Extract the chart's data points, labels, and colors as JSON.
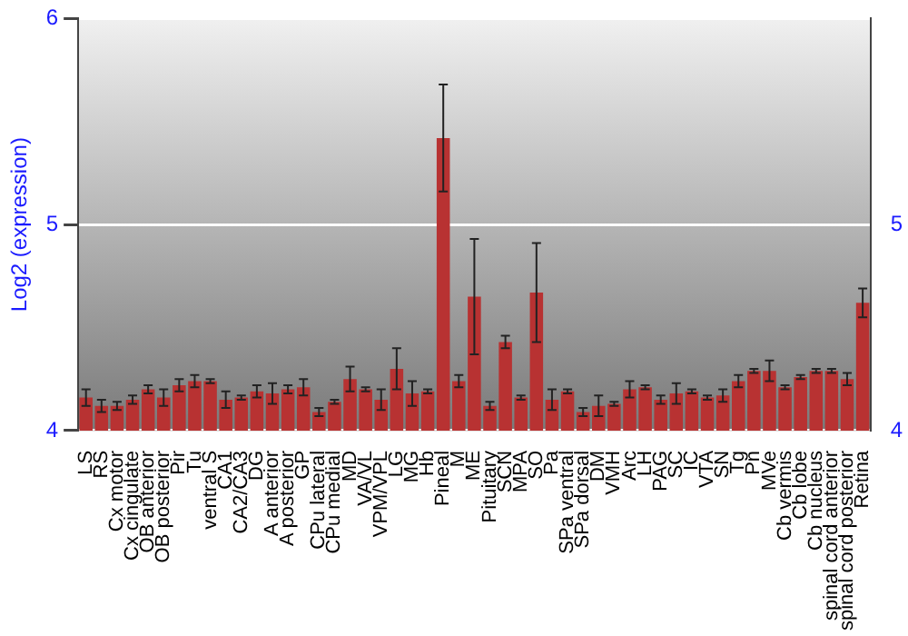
{
  "chart_data": {
    "type": "bar",
    "ylabel": "Log2 (expression)",
    "categories": [
      "LS",
      "RS",
      "Cx motor",
      "Cx cingulate",
      "OB anterior",
      "OB posterior",
      "Pir",
      "Tu",
      "ventral S",
      "CA1",
      "CA2/CA3",
      "DG",
      "A anterior",
      "A posterior",
      "GP",
      "CPu lateral",
      "CPu medial",
      "MD",
      "VA/VL",
      "VPM/VPL",
      "LG",
      "MG",
      "Hb",
      "Pineal",
      "M",
      "ME",
      "Pituitary",
      "SCN",
      "MPA",
      "SO",
      "Pa",
      "SPa ventral",
      "SPa dorsal",
      "DM",
      "VMH",
      "Arc",
      "LH",
      "PAG",
      "SC",
      "IC",
      "VTA",
      "SN",
      "Tg",
      "Pn",
      "MVe",
      "Cb vermis",
      "Cb lobe",
      "Cb nucleus",
      "spinal cord anterior",
      "spinal cord posterior",
      "Retina"
    ],
    "values": [
      4.16,
      4.12,
      4.12,
      4.15,
      4.2,
      4.16,
      4.22,
      4.24,
      4.24,
      4.15,
      4.16,
      4.19,
      4.18,
      4.2,
      4.21,
      4.09,
      4.14,
      4.25,
      4.2,
      4.15,
      4.3,
      4.18,
      4.19,
      5.42,
      4.24,
      4.65,
      4.12,
      4.43,
      4.16,
      4.67,
      4.15,
      4.19,
      4.09,
      4.12,
      4.13,
      4.2,
      4.21,
      4.15,
      4.18,
      4.19,
      4.16,
      4.17,
      4.24,
      4.29,
      4.29,
      4.21,
      4.26,
      4.29,
      4.29,
      4.25,
      4.62
    ],
    "errors": [
      0.04,
      0.03,
      0.02,
      0.02,
      0.02,
      0.04,
      0.03,
      0.03,
      0.01,
      0.04,
      0.01,
      0.03,
      0.05,
      0.02,
      0.04,
      0.02,
      0.01,
      0.06,
      0.01,
      0.05,
      0.1,
      0.06,
      0.01,
      0.26,
      0.03,
      0.28,
      0.02,
      0.03,
      0.01,
      0.24,
      0.05,
      0.01,
      0.02,
      0.05,
      0.01,
      0.04,
      0.01,
      0.02,
      0.05,
      0.01,
      0.01,
      0.03,
      0.03,
      0.01,
      0.05,
      0.01,
      0.01,
      0.01,
      0.01,
      0.03,
      0.07
    ],
    "color": "#b83232",
    "ylim": [
      4,
      6
    ],
    "yticks": [
      4,
      5,
      6
    ],
    "y2lim": [
      4,
      6
    ],
    "y2ticks": [
      4,
      5
    ],
    "grid": "y",
    "legend": false
  }
}
